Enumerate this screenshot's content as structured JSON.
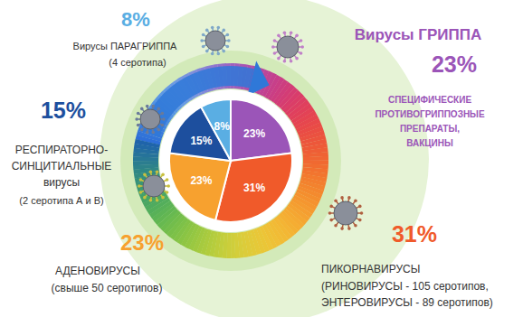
{
  "chart_data": {
    "type": "pie",
    "values": [
      23,
      31,
      23,
      15,
      8
    ],
    "value_labels": [
      "23%",
      "31%",
      "23%",
      "15%",
      "8%"
    ],
    "colors": [
      "#9b55b8",
      "#f05a2a",
      "#f7a12f",
      "#1d4f9e",
      "#5aaee3"
    ],
    "data_labels": true,
    "annotations": [
      {
        "title_lines": [
          "Вирусы ГРИППА"
        ],
        "note_lines": [
          "СПЕЦИФИЧЕСКИЕ",
          "ПРОТИВОГРИППОЗНЫЕ",
          "ПРЕПАРАТЫ,",
          "ВАКЦИНЫ"
        ]
      },
      {
        "title_lines": [
          "ПИКОРНАВИРУСЫ"
        ],
        "note_lines": [
          "(РИНОВИРУСЫ - 105 серотипов,",
          "ЭНТЕРОВИРУСЫ - 89 серотипов)"
        ]
      },
      {
        "title_lines": [
          "АДЕНОВИРУСЫ"
        ],
        "note_lines": [
          "(свыше 50 серотипов)"
        ]
      },
      {
        "title_lines": [
          "РЕСПИРАТОРНО-",
          "СИНЦИТИАЛЬНЫЕ",
          "вирусы"
        ],
        "note_lines": [
          "(2 серотипа А и В)"
        ]
      },
      {
        "title_lines": [
          "Вирусы ПАРАГРИППА"
        ],
        "note_lines": [
          "(4 серотипа)"
        ]
      }
    ]
  }
}
